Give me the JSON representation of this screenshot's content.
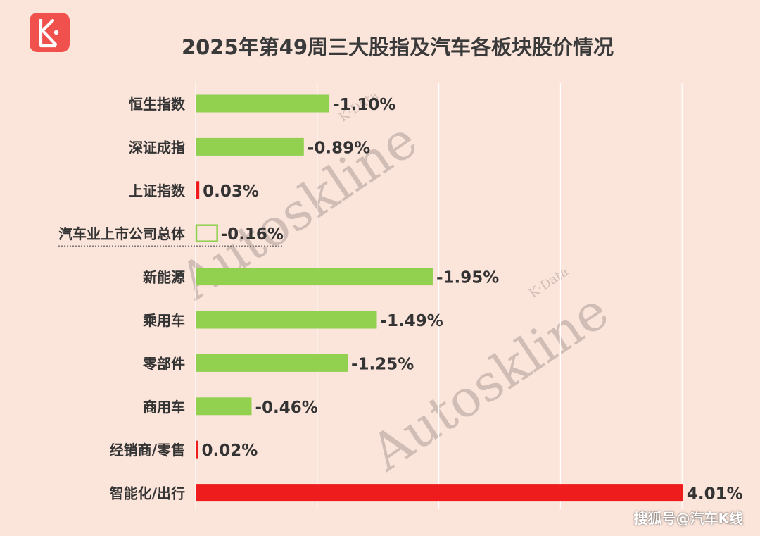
{
  "title": "2025年第49周三大股指及汽车各板块股价情况",
  "logo": {
    "letter": "K",
    "color": "#f0514d"
  },
  "watermark": {
    "text": "Autoskline",
    "subtext": "K·Data"
  },
  "footer": "搜狐号@汽车K线",
  "chart_data": {
    "type": "bar",
    "orientation": "horizontal",
    "title": "2025年第49周三大股指及汽车各板块股价情况",
    "categories": [
      "恒生指数",
      "深证成指",
      "上证指数",
      "汽车业上市公司总体",
      "新能源",
      "乘用车",
      "零部件",
      "商用车",
      "经销商/零售",
      "智能化/出行"
    ],
    "values": [
      -1.1,
      -0.89,
      0.03,
      -0.16,
      -1.95,
      -1.49,
      -1.25,
      -0.46,
      0.02,
      4.01
    ],
    "labels": [
      "-1.10%",
      "-0.89%",
      "0.03%",
      "-0.16%",
      "-1.95%",
      "-1.49%",
      "-1.25%",
      "-0.46%",
      "0.02%",
      "4.01%"
    ],
    "unit": "%",
    "bar_style": "magnitude from common baseline; negative values green, positive values red",
    "highlighted_category": "汽车业上市公司总体",
    "colors": {
      "negative": "#92d050",
      "positive": "#ee1c1c",
      "gridline": "#ffffff",
      "label": "#333333"
    },
    "grid": true,
    "legend": "none",
    "xlabel": "",
    "ylabel": ""
  }
}
